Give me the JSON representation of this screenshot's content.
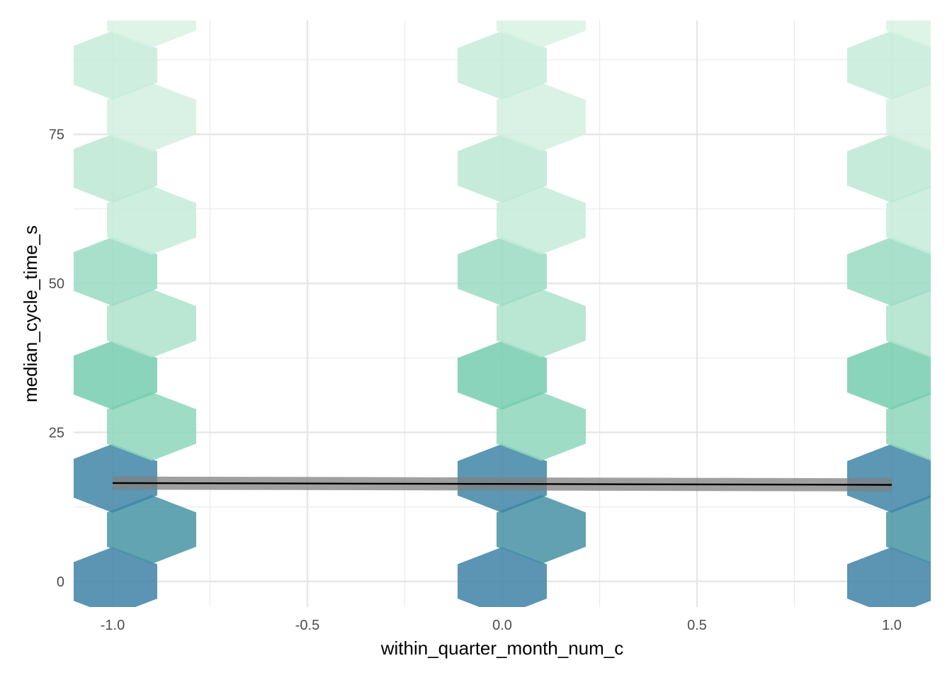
{
  "chart_data": {
    "type": "hexbin",
    "title": "",
    "xlabel": "within_quarter_month_num_c",
    "ylabel": "median_cycle_time_s",
    "xlim": [
      -1.1,
      1.1
    ],
    "ylim": [
      -4.3,
      94.1
    ],
    "x_ticks": [
      -1.0,
      -0.5,
      0.0,
      0.5,
      1.0
    ],
    "x_tick_labels": [
      "-1.0",
      "-0.5",
      "0.0",
      "0.5",
      "1.0"
    ],
    "y_ticks": [
      0,
      25,
      50,
      75
    ],
    "y_tick_labels": [
      "0",
      "25",
      "50",
      "75"
    ],
    "x_minor_ticks": [
      -0.75,
      -0.25,
      0.25,
      0.75
    ],
    "y_minor_ticks": [
      12.5,
      37.5,
      62.5,
      87.5
    ],
    "grid": true,
    "legend": "none",
    "fill_scale": {
      "low_color": "#3d7fa6",
      "high_color": "#e4f7ea",
      "note_color_order": "dark blue = most observations, pale green = fewest"
    },
    "hex_bins": [
      {
        "x": -1.0,
        "y": 0.0,
        "level": 0.98
      },
      {
        "x": -0.9,
        "y": 8.7,
        "level": 0.86
      },
      {
        "x": -1.0,
        "y": 17.3,
        "level": 0.96
      },
      {
        "x": -0.9,
        "y": 26.0,
        "level": 0.35
      },
      {
        "x": -1.0,
        "y": 34.6,
        "level": 0.45
      },
      {
        "x": -0.9,
        "y": 43.3,
        "level": 0.22
      },
      {
        "x": -1.0,
        "y": 52.0,
        "level": 0.3
      },
      {
        "x": -0.9,
        "y": 60.6,
        "level": 0.12
      },
      {
        "x": -1.0,
        "y": 69.3,
        "level": 0.16
      },
      {
        "x": -0.9,
        "y": 77.9,
        "level": 0.07
      },
      {
        "x": -1.0,
        "y": 86.6,
        "level": 0.12
      },
      {
        "x": -0.9,
        "y": 95.3,
        "level": 0.05
      },
      {
        "x": 0.0,
        "y": 0.0,
        "level": 0.98
      },
      {
        "x": 0.1,
        "y": 8.7,
        "level": 0.88
      },
      {
        "x": 0.0,
        "y": 17.3,
        "level": 0.96
      },
      {
        "x": 0.1,
        "y": 26.0,
        "level": 0.35
      },
      {
        "x": 0.0,
        "y": 34.6,
        "level": 0.45
      },
      {
        "x": 0.1,
        "y": 43.3,
        "level": 0.22
      },
      {
        "x": 0.0,
        "y": 52.0,
        "level": 0.3
      },
      {
        "x": 0.1,
        "y": 60.6,
        "level": 0.12
      },
      {
        "x": 0.0,
        "y": 69.3,
        "level": 0.16
      },
      {
        "x": 0.1,
        "y": 77.9,
        "level": 0.07
      },
      {
        "x": 0.0,
        "y": 86.6,
        "level": 0.12
      },
      {
        "x": 0.1,
        "y": 95.3,
        "level": 0.05
      },
      {
        "x": 1.0,
        "y": 0.0,
        "level": 0.98
      },
      {
        "x": 1.1,
        "y": 8.7,
        "level": 0.86
      },
      {
        "x": 1.0,
        "y": 17.3,
        "level": 0.96
      },
      {
        "x": 1.1,
        "y": 26.0,
        "level": 0.35
      },
      {
        "x": 1.0,
        "y": 34.6,
        "level": 0.45
      },
      {
        "x": 1.1,
        "y": 43.3,
        "level": 0.22
      },
      {
        "x": 1.0,
        "y": 52.0,
        "level": 0.3
      },
      {
        "x": 1.1,
        "y": 60.6,
        "level": 0.12
      },
      {
        "x": 1.0,
        "y": 69.3,
        "level": 0.16
      },
      {
        "x": 1.1,
        "y": 77.9,
        "level": 0.07
      },
      {
        "x": 1.0,
        "y": 86.6,
        "level": 0.12
      },
      {
        "x": 1.1,
        "y": 95.3,
        "level": 0.05
      }
    ],
    "hex_bin_size": {
      "dx": 0.1,
      "dy": 8.66
    },
    "trend_line": {
      "x": [
        -1.0,
        1.0
      ],
      "y": [
        16.5,
        16.2
      ],
      "ci_lower": [
        15.4,
        15.1
      ],
      "ci_upper": [
        17.6,
        17.3
      ],
      "line_color": "#000000",
      "band_color": "#808080"
    }
  }
}
